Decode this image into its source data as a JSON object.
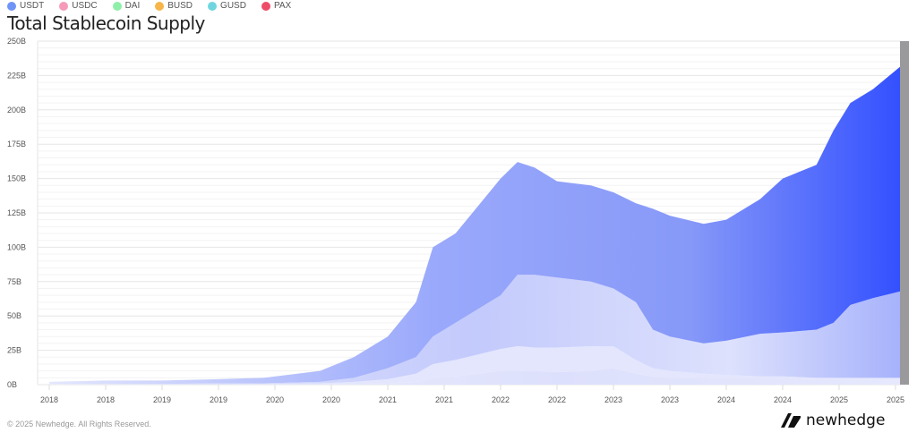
{
  "chart_data": {
    "type": "area",
    "stacked": true,
    "title": "Total Stablecoin Supply",
    "xlabel": "",
    "ylabel": "",
    "ylim": [
      0,
      250
    ],
    "yticks": [
      "0B",
      "25B",
      "50B",
      "75B",
      "100B",
      "125B",
      "150B",
      "175B",
      "200B",
      "225B",
      "250B"
    ],
    "xticks": [
      "2018",
      "2018",
      "2019",
      "2019",
      "2020",
      "2020",
      "2021",
      "2021",
      "2022",
      "2022",
      "2023",
      "2023",
      "2024",
      "2024",
      "2025",
      "2025"
    ],
    "legend": [
      {
        "name": "USDT",
        "color": "#6f94f7"
      },
      {
        "name": "USDC",
        "color": "#f59bb8"
      },
      {
        "name": "DAI",
        "color": "#8ef0a8"
      },
      {
        "name": "BUSD",
        "color": "#f7b54a"
      },
      {
        "name": "GUSD",
        "color": "#6fd6e0"
      },
      {
        "name": "PAX",
        "color": "#ee4d6a"
      }
    ],
    "legend_position": "top-left",
    "grid": true,
    "x": [
      2018.0,
      2018.5,
      2019.0,
      2019.5,
      2019.9,
      2020.4,
      2020.7,
      2021.0,
      2021.25,
      2021.4,
      2021.6,
      2021.8,
      2022.0,
      2022.15,
      2022.3,
      2022.5,
      2022.8,
      2023.0,
      2023.2,
      2023.35,
      2023.5,
      2023.8,
      2024.0,
      2024.3,
      2024.5,
      2024.8,
      2024.95,
      2025.1,
      2025.3,
      2025.55
    ],
    "series": [
      {
        "name": "DAI",
        "values": [
          0,
          0,
          0,
          0.1,
          0.2,
          0.3,
          0.5,
          1,
          2,
          5,
          6,
          8,
          10,
          10,
          10,
          9,
          10,
          12,
          8,
          6,
          5,
          5,
          5,
          5,
          5,
          4,
          4,
          4,
          4,
          4
        ]
      },
      {
        "name": "BUSD",
        "values": [
          0.2,
          0.2,
          0.2,
          0.2,
          0.3,
          0.7,
          1.5,
          3,
          6,
          10,
          12,
          14,
          16,
          18,
          17,
          18,
          18,
          16,
          10,
          6,
          5,
          3,
          2,
          1,
          1,
          1,
          1,
          1,
          1,
          1
        ]
      },
      {
        "name": "USDC",
        "values": [
          0.3,
          0.3,
          0.3,
          0.7,
          0.5,
          1,
          3,
          8,
          12,
          20,
          27,
          33,
          39,
          52,
          53,
          51,
          47,
          42,
          42,
          28,
          25,
          22,
          25,
          31,
          32,
          35,
          40,
          53,
          58,
          63
        ]
      },
      {
        "name": "USDT",
        "values": [
          1.5,
          2.5,
          2.5,
          3,
          4,
          8,
          15,
          23,
          40,
          65,
          65,
          75,
          85,
          82,
          78,
          70,
          70,
          70,
          72,
          88,
          88,
          87,
          88,
          98,
          112,
          120,
          140,
          147,
          152,
          164
        ]
      }
    ]
  },
  "footer": {
    "copyright": "© 2025 Newhedge. All Rights Reserved.",
    "brand": "newhedge"
  }
}
